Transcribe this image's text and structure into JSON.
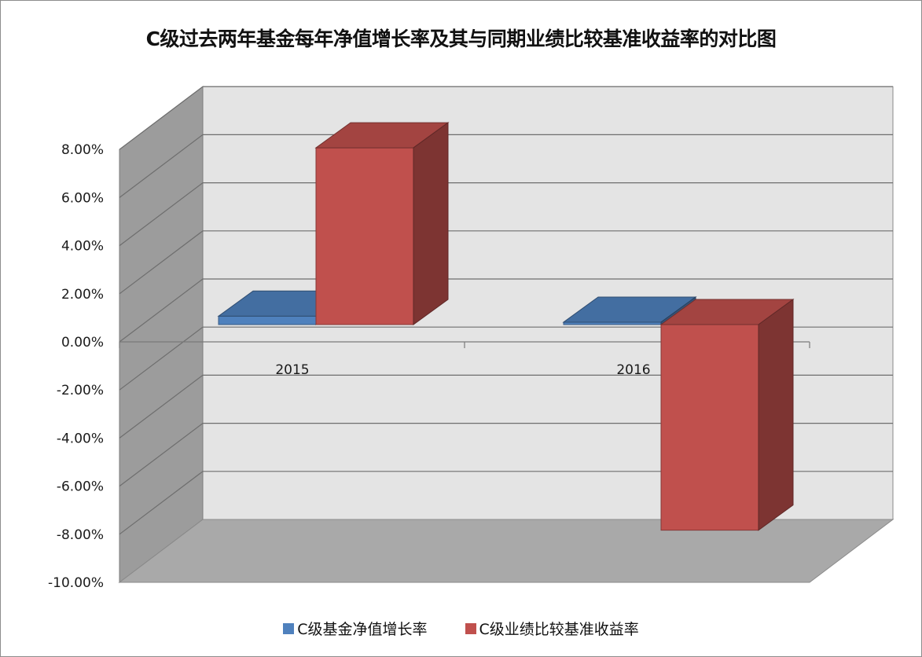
{
  "chart_data": {
    "type": "bar",
    "title": "C级过去两年基金每年净值增长率及其与同期业绩比较基准收益率的对比图",
    "xlabel": "",
    "ylabel": "",
    "categories": [
      "2015",
      "2016"
    ],
    "ylim": [
      -10,
      8
    ],
    "ytick_values": [
      8,
      6,
      4,
      2,
      0,
      -2,
      -4,
      -6,
      -8,
      -10
    ],
    "ytick_labels": [
      "8.00%",
      "6.00%",
      "4.00%",
      "2.00%",
      "0.00%",
      "-2.00%",
      "-4.00%",
      "-6.00%",
      "-8.00%",
      "-10.00%"
    ],
    "series": [
      {
        "name": "C级基金净值增长率",
        "values": [
          0.35,
          0.1
        ],
        "color": "#4f81bd"
      },
      {
        "name": "C级业绩比较基准收益率",
        "values": [
          7.35,
          -8.55
        ],
        "color": "#c0504d"
      }
    ],
    "grid": true,
    "three_d": true,
    "legend_position": "bottom"
  }
}
